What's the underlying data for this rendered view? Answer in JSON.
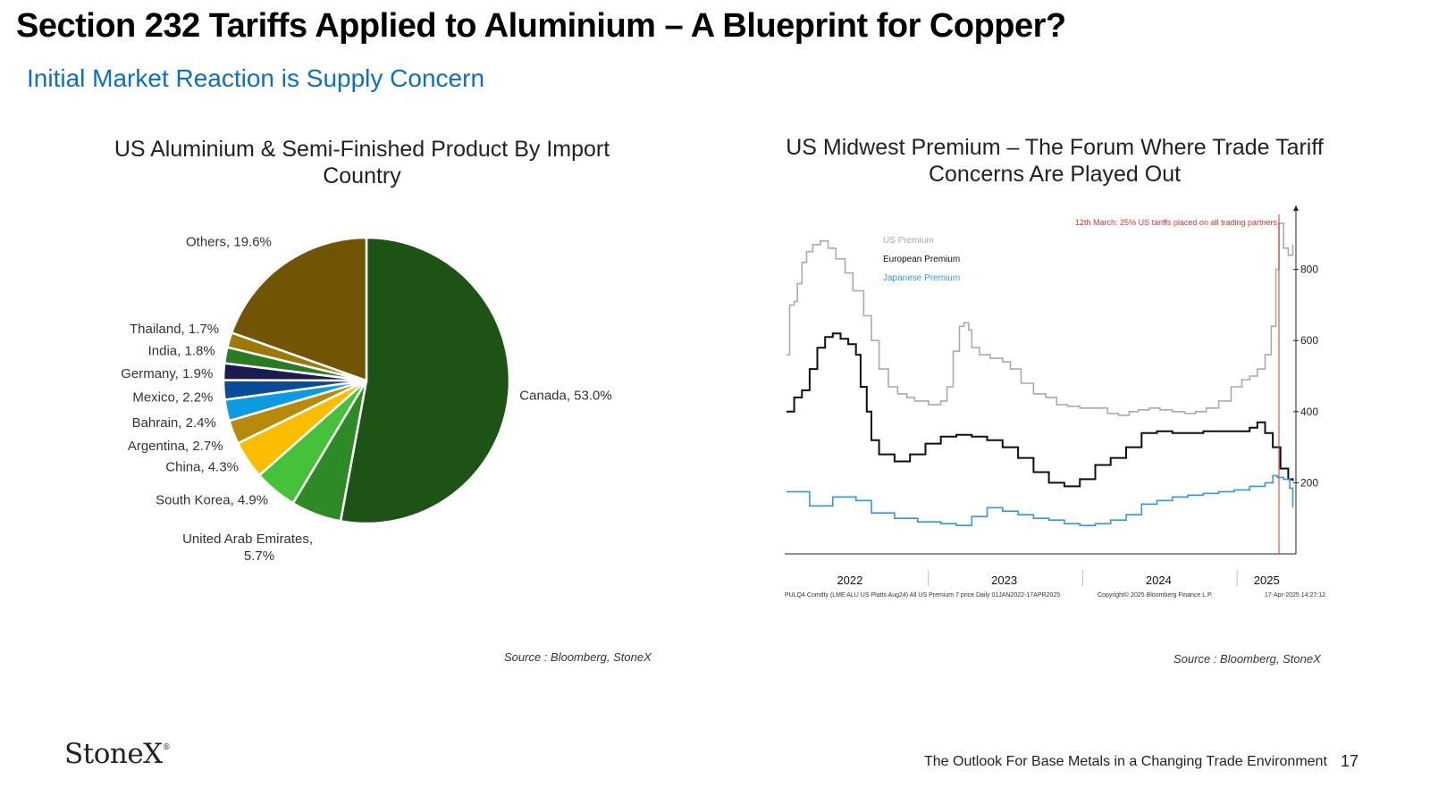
{
  "header": {
    "title": "Section 232 Tariffs Applied to Aluminium – A Blueprint for Copper?",
    "subtitle": "Initial Market Reaction is Supply Concern"
  },
  "left_chart": {
    "title": "US Aluminium & Semi-Finished Product By Import Country",
    "source": "Source : Bloomberg, StoneX"
  },
  "right_chart": {
    "title": "US Midwest Premium – The Forum Where Trade Tariff Concerns Are  Played Out",
    "source": "Source : Bloomberg, StoneX"
  },
  "footer": {
    "logo": "StoneX",
    "logo_mark": "®",
    "text": "The Outlook For Base Metals in a Changing Trade Environment",
    "page_number": "17"
  },
  "chart_data": [
    {
      "type": "pie",
      "title": "US Aluminium & Semi-Finished Product By Import Country",
      "slices": [
        {
          "label": "Canada, 53.0%",
          "value": 53.0,
          "color": "#1e5316"
        },
        {
          "label": "United Arab Emirates, 5.7%",
          "value": 5.7,
          "color": "#2e8a26"
        },
        {
          "label": "South Korea, 4.9%",
          "value": 4.9,
          "color": "#45c23a"
        },
        {
          "label": "China, 4.3%",
          "value": 4.3,
          "color": "#fbbd00"
        },
        {
          "label": "Argentina, 2.7%",
          "value": 2.7,
          "color": "#b88a0c"
        },
        {
          "label": "Bahrain, 2.4%",
          "value": 2.4,
          "color": "#0d9be0"
        },
        {
          "label": "Mexico, 2.2%",
          "value": 2.2,
          "color": "#0b4c99"
        },
        {
          "label": "Germany, 1.9%",
          "value": 1.9,
          "color": "#1b1b4d"
        },
        {
          "label": "India, 1.8%",
          "value": 1.8,
          "color": "#2b7a26"
        },
        {
          "label": "Thailand, 1.7%",
          "value": 1.7,
          "color": "#9c7a0a"
        },
        {
          "label": "Others, 19.6%",
          "value": 19.6,
          "color": "#725405"
        }
      ]
    },
    {
      "type": "line",
      "title": "US Midwest Premium – The Forum Where Trade Tariff Concerns Are  Played Out",
      "x_ticks": [
        "2022",
        "2023",
        "2024",
        "2025"
      ],
      "x_range": [
        2022.0,
        2025.3
      ],
      "y_ticks": [
        200,
        400,
        600,
        800
      ],
      "ylim": [
        0,
        980
      ],
      "y_axis_position": "right",
      "legend_position": "top-left",
      "annotation": {
        "text": "12th March: 25% US tariffs placed on all trading partners",
        "x": 2025.19,
        "color": "#e03030"
      },
      "footnote_left": "PULQ4 Comdty (LME ALU US Platts Aug24) All US Premium 7 price  Daily 01JAN2022-17APR2025",
      "footnote_mid": "Copyright© 2025 Bloomberg Finance L.P.",
      "footnote_right": "17-Apr-2025 14:27:12",
      "series": [
        {
          "name": "US Premium",
          "color": "#aaaaaa",
          "x": [
            2022.0,
            2022.02,
            2022.05,
            2022.07,
            2022.1,
            2022.13,
            2022.17,
            2022.22,
            2022.27,
            2022.32,
            2022.38,
            2022.43,
            2022.5,
            2022.55,
            2022.6,
            2022.66,
            2022.72,
            2022.78,
            2022.83,
            2022.87,
            2022.92,
            2023.0,
            2023.04,
            2023.08,
            2023.12,
            2023.15,
            2023.18,
            2023.2,
            2023.25,
            2023.32,
            2023.4,
            2023.45,
            2023.52,
            2023.6,
            2023.68,
            2023.75,
            2023.82,
            2023.9,
            2024.0,
            2024.08,
            2024.15,
            2024.22,
            2024.28,
            2024.35,
            2024.42,
            2024.5,
            2024.58,
            2024.65,
            2024.72,
            2024.8,
            2024.88,
            2024.95,
            2025.0,
            2025.05,
            2025.1,
            2025.14,
            2025.17,
            2025.19,
            2025.22,
            2025.25,
            2025.28
          ],
          "y": [
            560,
            700,
            710,
            760,
            820,
            850,
            870,
            880,
            860,
            830,
            790,
            740,
            670,
            600,
            520,
            470,
            450,
            440,
            430,
            430,
            420,
            430,
            470,
            570,
            640,
            650,
            630,
            580,
            560,
            550,
            540,
            520,
            480,
            450,
            440,
            420,
            415,
            410,
            410,
            395,
            390,
            400,
            405,
            410,
            405,
            400,
            395,
            400,
            410,
            430,
            470,
            490,
            500,
            520,
            560,
            640,
            800,
            930,
            860,
            840,
            870
          ]
        },
        {
          "name": "European Premium",
          "color": "#0d0d1a",
          "x": [
            2022.0,
            2022.05,
            2022.1,
            2022.15,
            2022.2,
            2022.25,
            2022.3,
            2022.35,
            2022.4,
            2022.45,
            2022.48,
            2022.52,
            2022.55,
            2022.6,
            2022.7,
            2022.8,
            2022.9,
            2023.0,
            2023.1,
            2023.2,
            2023.3,
            2023.4,
            2023.5,
            2023.6,
            2023.7,
            2023.8,
            2023.9,
            2024.0,
            2024.1,
            2024.2,
            2024.3,
            2024.4,
            2024.5,
            2024.6,
            2024.7,
            2024.8,
            2024.9,
            2025.0,
            2025.05,
            2025.1,
            2025.15,
            2025.2,
            2025.25,
            2025.28
          ],
          "y": [
            400,
            440,
            460,
            520,
            580,
            610,
            620,
            605,
            590,
            560,
            470,
            400,
            320,
            280,
            260,
            280,
            310,
            330,
            335,
            330,
            320,
            300,
            270,
            230,
            200,
            190,
            210,
            250,
            270,
            300,
            340,
            345,
            340,
            340,
            345,
            345,
            345,
            355,
            370,
            340,
            300,
            240,
            210,
            205
          ]
        },
        {
          "name": "Japanese Premium",
          "color": "#3397e8",
          "x": [
            2022.0,
            2022.15,
            2022.3,
            2022.45,
            2022.55,
            2022.7,
            2022.85,
            2023.0,
            2023.1,
            2023.2,
            2023.3,
            2023.4,
            2023.5,
            2023.6,
            2023.7,
            2023.8,
            2023.9,
            2024.0,
            2024.1,
            2024.2,
            2024.3,
            2024.4,
            2024.5,
            2024.6,
            2024.7,
            2024.8,
            2024.9,
            2025.0,
            2025.1,
            2025.15,
            2025.18,
            2025.22,
            2025.26,
            2025.28
          ],
          "y": [
            175,
            135,
            160,
            150,
            115,
            100,
            90,
            85,
            80,
            105,
            130,
            120,
            110,
            100,
            95,
            85,
            80,
            85,
            95,
            110,
            140,
            150,
            160,
            165,
            170,
            175,
            180,
            190,
            200,
            220,
            215,
            210,
            185,
            130
          ]
        }
      ]
    }
  ]
}
